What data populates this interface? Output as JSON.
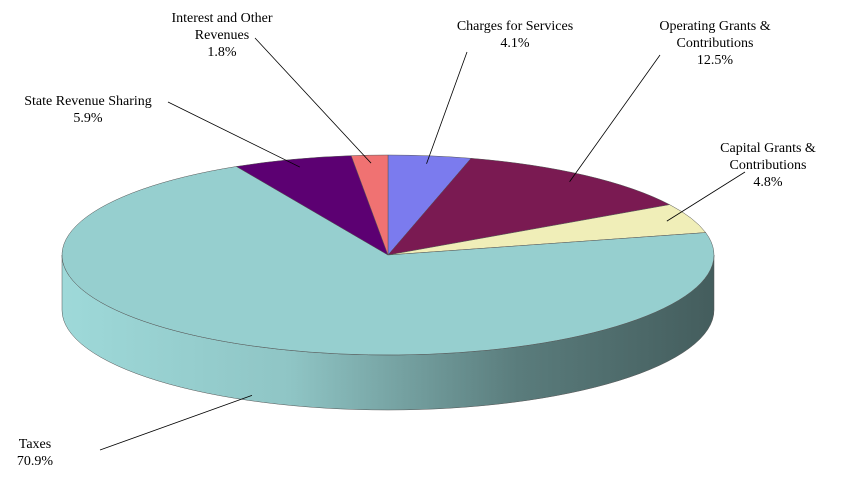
{
  "chart_data": {
    "type": "pie",
    "categories": [
      "Charges for Services",
      "Operating Grants & Contributions",
      "Capital Grants & Contributions",
      "Taxes",
      "State Revenue Sharing",
      "Interest and Other Revenues"
    ],
    "values": [
      4.1,
      12.5,
      4.8,
      70.9,
      5.9,
      1.8
    ],
    "value_labels": [
      "4.1%",
      "12.5%",
      "4.8%",
      "70.9%",
      "5.9%",
      "1.8%"
    ],
    "colors": [
      "#7b7bee",
      "#7a1a52",
      "#f0eeb8",
      "#96cfcf",
      "#5c0072",
      "#f07272"
    ]
  }
}
